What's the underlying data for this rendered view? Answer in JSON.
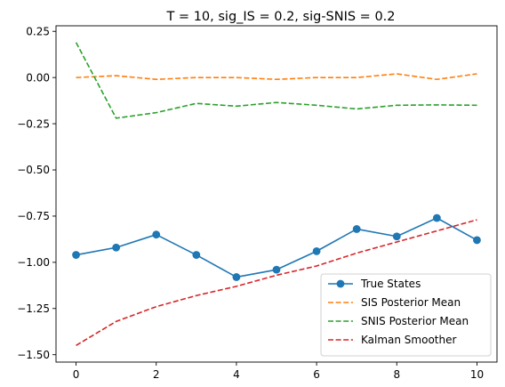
{
  "chart_data": {
    "type": "line",
    "title": "T = 10, sig_IS = 0.2, sig-SNIS = 0.2",
    "xlabel": "",
    "ylabel": "",
    "xlim": [
      -0.5,
      10.5
    ],
    "ylim": [
      -1.54,
      0.28
    ],
    "xticks": [
      0,
      2,
      4,
      6,
      8,
      10
    ],
    "xtick_labels": [
      "0",
      "2",
      "4",
      "6",
      "8",
      "10"
    ],
    "yticks": [
      0.25,
      0.0,
      -0.25,
      -0.5,
      -0.75,
      -1.0,
      -1.25,
      -1.5
    ],
    "ytick_labels": [
      "0.25",
      "0.00",
      "−0.25",
      "−0.50",
      "−0.75",
      "−1.00",
      "−1.25",
      "−1.50"
    ],
    "grid": false,
    "legend_position": "lower-right",
    "x": [
      0,
      1,
      2,
      3,
      4,
      5,
      6,
      7,
      8,
      9,
      10
    ],
    "series": [
      {
        "name": "True States",
        "style": "solid-marker",
        "color": "#1f77b4",
        "values": [
          -0.96,
          -0.92,
          -0.85,
          -0.96,
          -1.08,
          -1.04,
          -0.94,
          -0.82,
          -0.86,
          -0.76,
          -0.88
        ]
      },
      {
        "name": "SIS Posterior Mean",
        "style": "dashed",
        "color": "#ff7f0e",
        "values": [
          0.0,
          0.01,
          -0.01,
          0.0,
          0.0,
          -0.01,
          0.0,
          0.0,
          0.02,
          -0.01,
          0.02
        ]
      },
      {
        "name": "SNIS Posterior Mean",
        "style": "dashed",
        "color": "#2ca02c",
        "values": [
          0.19,
          -0.22,
          -0.19,
          -0.14,
          -0.155,
          -0.135,
          -0.15,
          -0.17,
          -0.15,
          -0.148,
          -0.15
        ]
      },
      {
        "name": "Kalman Smoother",
        "style": "dashed",
        "color": "#d62728",
        "values": [
          -1.45,
          -1.32,
          -1.24,
          -1.18,
          -1.13,
          -1.07,
          -1.02,
          -0.95,
          -0.89,
          -0.83,
          -0.77
        ]
      }
    ]
  }
}
